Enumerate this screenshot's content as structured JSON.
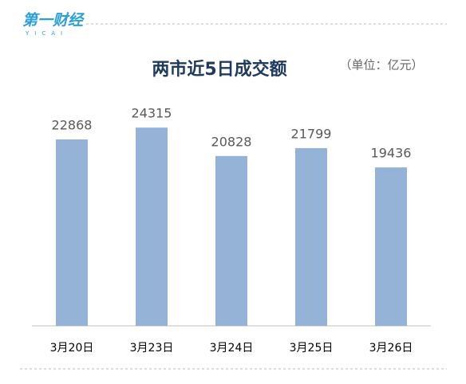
{
  "logo": {
    "text": "第一财经",
    "sub": "YICAI"
  },
  "chart_data": {
    "type": "bar",
    "title": "两市近5日成交额",
    "subtitle": "（单位：亿元）",
    "categories": [
      "3月20日",
      "3月23日",
      "3月24日",
      "3月25日",
      "3月26日"
    ],
    "values": [
      22868,
      24315,
      20828,
      21799,
      19436
    ],
    "color": "#95b3d7",
    "ylim": [
      0,
      30000
    ],
    "grid": false
  }
}
